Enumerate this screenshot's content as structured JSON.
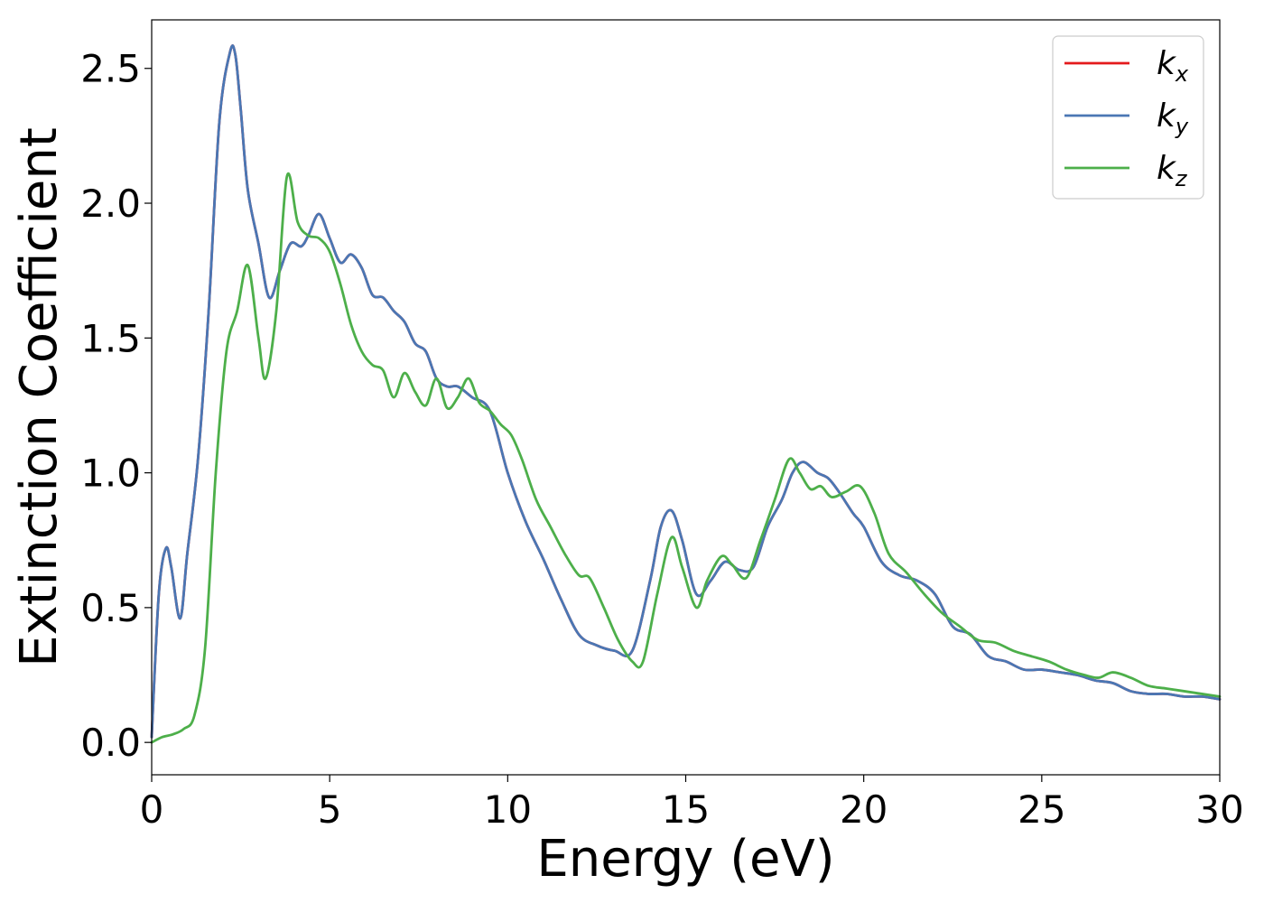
{
  "chart_data": {
    "type": "line",
    "title": "",
    "xlabel": "Energy (eV)",
    "ylabel": "Extinction Coefficient",
    "xlim": [
      0,
      30
    ],
    "ylim": [
      -0.12,
      2.68
    ],
    "xticks": [
      0,
      5,
      10,
      15,
      20,
      25,
      30
    ],
    "xtick_labels": [
      "0",
      "5",
      "10",
      "15",
      "20",
      "25",
      "30"
    ],
    "yticks": [
      0.0,
      0.5,
      1.0,
      1.5,
      2.0,
      2.5
    ],
    "ytick_labels": [
      "0.0",
      "0.5",
      "1.0",
      "1.5",
      "2.0",
      "2.5"
    ],
    "grid": false,
    "legend": "top-right",
    "series": [
      {
        "name": "k",
        "subscript": "x",
        "color": "#e41a1c",
        "x": [
          0,
          0.2,
          0.4,
          0.55,
          0.8,
          1.0,
          1.3,
          1.6,
          1.9,
          2.2,
          2.35,
          2.5,
          2.7,
          3.0,
          3.3,
          3.6,
          3.9,
          4.2,
          4.4,
          4.7,
          5.0,
          5.3,
          5.6,
          5.9,
          6.2,
          6.5,
          6.8,
          7.1,
          7.4,
          7.7,
          8.0,
          8.3,
          8.6,
          9.0,
          9.5,
          10.0,
          10.5,
          11.0,
          11.5,
          12.0,
          12.5,
          13.0,
          13.5,
          14.0,
          14.3,
          14.6,
          14.9,
          15.3,
          15.7,
          16.1,
          16.5,
          16.9,
          17.3,
          17.7,
          18.0,
          18.3,
          18.7,
          19.0,
          19.3,
          19.7,
          20.0,
          20.5,
          21.0,
          21.5,
          22.0,
          22.5,
          23.0,
          23.5,
          24.0,
          24.5,
          25.0,
          25.5,
          26.0,
          26.5,
          27.0,
          27.5,
          28.0,
          28.5,
          29.0,
          29.5,
          30.0
        ],
        "y": [
          0.02,
          0.55,
          0.72,
          0.65,
          0.46,
          0.7,
          1.05,
          1.6,
          2.3,
          2.56,
          2.55,
          2.35,
          2.05,
          1.85,
          1.65,
          1.75,
          1.85,
          1.84,
          1.88,
          1.96,
          1.87,
          1.78,
          1.81,
          1.76,
          1.66,
          1.65,
          1.6,
          1.56,
          1.48,
          1.45,
          1.35,
          1.32,
          1.32,
          1.28,
          1.23,
          1.0,
          0.82,
          0.68,
          0.53,
          0.4,
          0.36,
          0.34,
          0.34,
          0.6,
          0.8,
          0.86,
          0.75,
          0.55,
          0.6,
          0.67,
          0.64,
          0.65,
          0.8,
          0.9,
          1.0,
          1.04,
          1.0,
          0.98,
          0.93,
          0.85,
          0.8,
          0.67,
          0.62,
          0.6,
          0.55,
          0.43,
          0.4,
          0.32,
          0.3,
          0.27,
          0.27,
          0.26,
          0.25,
          0.23,
          0.22,
          0.19,
          0.18,
          0.18,
          0.17,
          0.17,
          0.16
        ]
      },
      {
        "name": "k",
        "subscript": "y",
        "color": "#4a77b4",
        "x": [
          0,
          0.2,
          0.4,
          0.55,
          0.8,
          1.0,
          1.3,
          1.6,
          1.9,
          2.2,
          2.35,
          2.5,
          2.7,
          3.0,
          3.3,
          3.6,
          3.9,
          4.2,
          4.4,
          4.7,
          5.0,
          5.3,
          5.6,
          5.9,
          6.2,
          6.5,
          6.8,
          7.1,
          7.4,
          7.7,
          8.0,
          8.3,
          8.6,
          9.0,
          9.5,
          10.0,
          10.5,
          11.0,
          11.5,
          12.0,
          12.5,
          13.0,
          13.5,
          14.0,
          14.3,
          14.6,
          14.9,
          15.3,
          15.7,
          16.1,
          16.5,
          16.9,
          17.3,
          17.7,
          18.0,
          18.3,
          18.7,
          19.0,
          19.3,
          19.7,
          20.0,
          20.5,
          21.0,
          21.5,
          22.0,
          22.5,
          23.0,
          23.5,
          24.0,
          24.5,
          25.0,
          25.5,
          26.0,
          26.5,
          27.0,
          27.5,
          28.0,
          28.5,
          29.0,
          29.5,
          30.0
        ],
        "y": [
          0.02,
          0.55,
          0.72,
          0.65,
          0.46,
          0.7,
          1.05,
          1.6,
          2.3,
          2.56,
          2.55,
          2.35,
          2.05,
          1.85,
          1.65,
          1.75,
          1.85,
          1.84,
          1.88,
          1.96,
          1.87,
          1.78,
          1.81,
          1.76,
          1.66,
          1.65,
          1.6,
          1.56,
          1.48,
          1.45,
          1.35,
          1.32,
          1.32,
          1.28,
          1.23,
          1.0,
          0.82,
          0.68,
          0.53,
          0.4,
          0.36,
          0.34,
          0.34,
          0.6,
          0.8,
          0.86,
          0.75,
          0.55,
          0.6,
          0.67,
          0.64,
          0.65,
          0.8,
          0.9,
          1.0,
          1.04,
          1.0,
          0.98,
          0.93,
          0.85,
          0.8,
          0.67,
          0.62,
          0.6,
          0.55,
          0.43,
          0.4,
          0.32,
          0.3,
          0.27,
          0.27,
          0.26,
          0.25,
          0.23,
          0.22,
          0.19,
          0.18,
          0.18,
          0.17,
          0.17,
          0.16
        ]
      },
      {
        "name": "k",
        "subscript": "z",
        "color": "#4daf4a",
        "x": [
          0,
          0.3,
          0.6,
          0.9,
          1.2,
          1.5,
          1.8,
          2.1,
          2.4,
          2.7,
          3.0,
          3.2,
          3.5,
          3.8,
          4.1,
          4.4,
          4.7,
          5.0,
          5.3,
          5.6,
          5.9,
          6.2,
          6.5,
          6.8,
          7.1,
          7.4,
          7.7,
          8.0,
          8.3,
          8.6,
          8.9,
          9.2,
          9.5,
          9.8,
          10.1,
          10.4,
          10.8,
          11.2,
          11.6,
          12.0,
          12.3,
          12.7,
          13.1,
          13.5,
          13.8,
          14.2,
          14.6,
          14.9,
          15.3,
          15.6,
          16.0,
          16.3,
          16.7,
          17.1,
          17.5,
          17.9,
          18.2,
          18.5,
          18.8,
          19.1,
          19.5,
          19.9,
          20.3,
          20.7,
          21.2,
          21.7,
          22.2,
          22.7,
          23.2,
          23.7,
          24.2,
          24.7,
          25.2,
          25.7,
          26.2,
          26.6,
          27.0,
          27.5,
          28.0,
          28.5,
          29.0,
          29.5,
          30.0
        ],
        "y": [
          0.0,
          0.02,
          0.03,
          0.05,
          0.1,
          0.35,
          1.0,
          1.45,
          1.6,
          1.77,
          1.5,
          1.35,
          1.6,
          2.1,
          1.93,
          1.88,
          1.87,
          1.82,
          1.7,
          1.55,
          1.45,
          1.4,
          1.38,
          1.28,
          1.37,
          1.3,
          1.25,
          1.35,
          1.24,
          1.28,
          1.35,
          1.26,
          1.23,
          1.18,
          1.14,
          1.05,
          0.9,
          0.8,
          0.7,
          0.62,
          0.61,
          0.5,
          0.38,
          0.3,
          0.3,
          0.55,
          0.76,
          0.65,
          0.5,
          0.6,
          0.69,
          0.66,
          0.61,
          0.75,
          0.9,
          1.05,
          1.0,
          0.94,
          0.95,
          0.91,
          0.93,
          0.95,
          0.85,
          0.7,
          0.63,
          0.55,
          0.48,
          0.43,
          0.38,
          0.37,
          0.34,
          0.32,
          0.3,
          0.27,
          0.25,
          0.24,
          0.26,
          0.24,
          0.21,
          0.2,
          0.19,
          0.18,
          0.17
        ]
      }
    ]
  }
}
